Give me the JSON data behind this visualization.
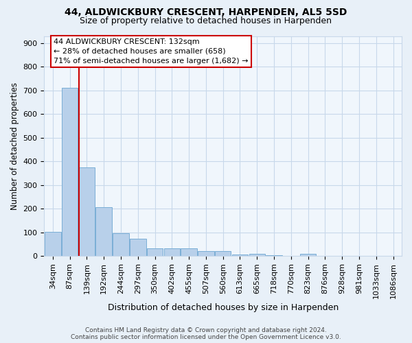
{
  "title1": "44, ALDWICKBURY CRESCENT, HARPENDEN, AL5 5SD",
  "title2": "Size of property relative to detached houses in Harpenden",
  "xlabel": "Distribution of detached houses by size in Harpenden",
  "ylabel": "Number of detached properties",
  "bin_labels": [
    "34sqm",
    "87sqm",
    "139sqm",
    "192sqm",
    "244sqm",
    "297sqm",
    "350sqm",
    "402sqm",
    "455sqm",
    "507sqm",
    "560sqm",
    "613sqm",
    "665sqm",
    "718sqm",
    "770sqm",
    "823sqm",
    "876sqm",
    "928sqm",
    "981sqm",
    "1033sqm",
    "1086sqm"
  ],
  "bar_values": [
    103,
    710,
    375,
    207,
    96,
    74,
    32,
    33,
    34,
    21,
    22,
    8,
    10,
    5,
    0,
    10,
    0,
    0,
    0,
    0,
    0
  ],
  "bar_color": "#b8d0ea",
  "bar_edge_color": "#7aaed6",
  "grid_color": "#c8d8ea",
  "vline_color": "#cc0000",
  "vline_x": 1.55,
  "annotation_text": "44 ALDWICKBURY CRESCENT: 132sqm\n← 28% of detached houses are smaller (658)\n71% of semi-detached houses are larger (1,682) →",
  "annotation_box_color": "#ffffff",
  "annotation_box_edge": "#cc0000",
  "ylim": [
    0,
    930
  ],
  "yticks": [
    0,
    100,
    200,
    300,
    400,
    500,
    600,
    700,
    800,
    900
  ],
  "footer": "Contains HM Land Registry data © Crown copyright and database right 2024.\nContains public sector information licensed under the Open Government Licence v3.0.",
  "bg_color": "#e8f0f8",
  "plot_bg_color": "#f0f6fc",
  "title1_fontsize": 10,
  "title2_fontsize": 9,
  "xlabel_fontsize": 9,
  "ylabel_fontsize": 8.5,
  "tick_fontsize": 8,
  "annot_fontsize": 8,
  "footer_fontsize": 6.5
}
